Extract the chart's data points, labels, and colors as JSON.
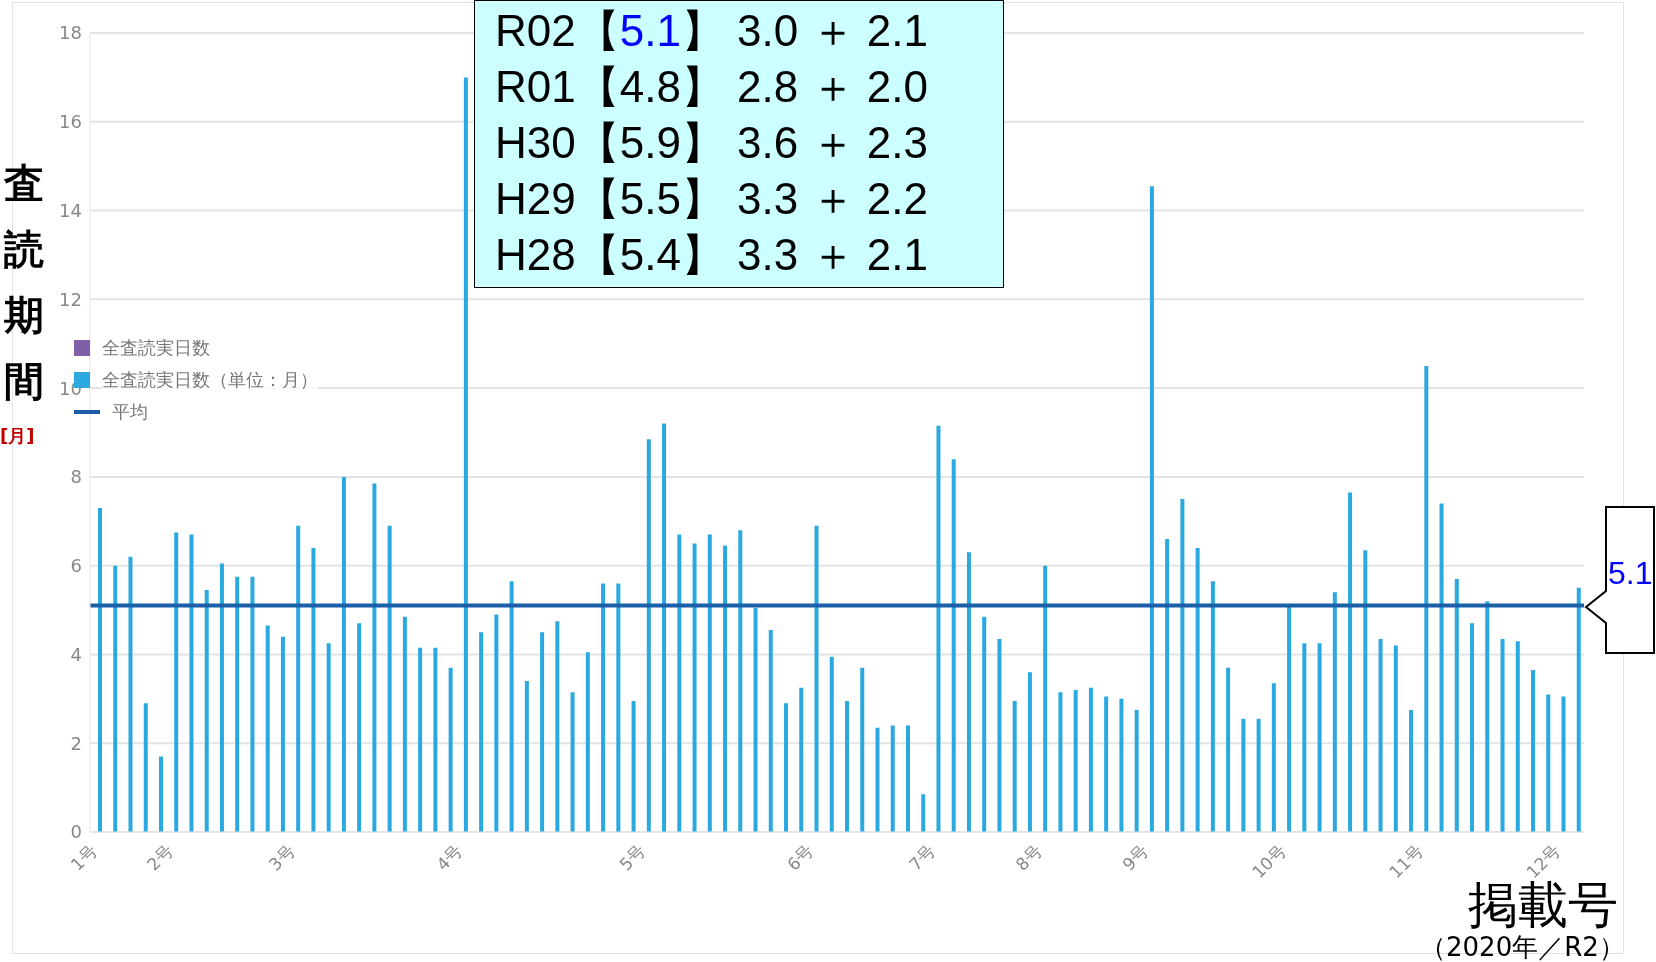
{
  "chart_data": {
    "type": "bar",
    "ylabel": "査読期間",
    "xlabel": "掲載号",
    "categories": [
      "1号",
      null,
      null,
      null,
      null,
      "2号",
      null,
      null,
      null,
      null,
      null,
      null,
      null,
      "3号",
      null,
      null,
      null,
      null,
      null,
      null,
      null,
      null,
      null,
      null,
      "4号",
      null,
      null,
      null,
      null,
      null,
      null,
      null,
      null,
      null,
      null,
      null,
      "5号",
      null,
      null,
      null,
      null,
      null,
      null,
      null,
      null,
      null,
      null,
      "6号",
      null,
      null,
      null,
      null,
      null,
      null,
      null,
      "7号",
      null,
      null,
      null,
      null,
      null,
      null,
      "8号",
      null,
      null,
      null,
      null,
      null,
      null,
      "9号",
      null,
      null,
      null,
      null,
      null,
      null,
      null,
      null,
      "10号",
      null,
      null,
      null,
      null,
      null,
      null,
      null,
      null,
      "11号",
      null,
      null,
      null,
      null,
      null,
      null,
      null,
      null,
      "12号",
      null
    ],
    "series": [
      {
        "name": "全査読実日数",
        "color": "#7f5fa8",
        "values": [
          null,
          null,
          null,
          null,
          null,
          null,
          null,
          null,
          null,
          null,
          null,
          null,
          null,
          null,
          null,
          null,
          null,
          null,
          null,
          null,
          null,
          null,
          null,
          null,
          null,
          null,
          null,
          null,
          null,
          null,
          null,
          null,
          null,
          null,
          null,
          null,
          null,
          null,
          null,
          null,
          null,
          null,
          null,
          null,
          null,
          null,
          null,
          null,
          null,
          null,
          null,
          null,
          null,
          null,
          null,
          null,
          null,
          null,
          null,
          null,
          null,
          null,
          null,
          null,
          null,
          null,
          null,
          null,
          null,
          null,
          null,
          null,
          null,
          null,
          null,
          null,
          null,
          null,
          null,
          null,
          null,
          null,
          null,
          null,
          null,
          null,
          null,
          null,
          null,
          null,
          null,
          null,
          null,
          null,
          null,
          null,
          null,
          null
        ]
      },
      {
        "name": "全査読実日数（単位：月）",
        "color": "#29a9e0",
        "values": [
          7.3,
          6.0,
          6.2,
          2.9,
          1.7,
          6.75,
          6.7,
          5.45,
          6.05,
          5.75,
          5.75,
          4.65,
          4.4,
          6.9,
          6.4,
          4.25,
          8.0,
          4.7,
          7.85,
          6.9,
          4.85,
          4.15,
          4.15,
          3.7,
          17.0,
          4.5,
          4.9,
          5.65,
          3.4,
          4.5,
          4.75,
          3.15,
          4.05,
          5.6,
          5.6,
          2.95,
          8.85,
          9.2,
          6.7,
          6.5,
          6.7,
          6.45,
          6.8,
          5.05,
          4.55,
          2.9,
          3.25,
          6.9,
          3.95,
          2.95,
          3.7,
          2.35,
          2.4,
          2.4,
          0.85,
          9.15,
          8.4,
          6.3,
          4.85,
          4.35,
          2.95,
          3.6,
          6.0,
          3.15,
          3.2,
          3.25,
          3.05,
          3.0,
          2.75,
          14.55,
          6.6,
          7.5,
          6.4,
          5.65,
          3.7,
          2.55,
          2.55,
          3.35,
          5.1,
          4.25,
          4.25,
          5.4,
          7.65,
          6.35,
          4.35,
          4.2,
          2.75,
          10.5,
          7.4,
          5.7,
          4.7,
          5.2,
          4.35,
          4.3,
          3.65,
          3.1,
          3.05,
          5.5
        ]
      }
    ],
    "ylim": [
      0,
      18
    ],
    "yticks": [
      0,
      2,
      4,
      6,
      8,
      10,
      12,
      14,
      16,
      18
    ],
    "grid": "y",
    "legend": "left",
    "ref_lines": [
      {
        "axis": "y",
        "value": 5.1,
        "label": "平均",
        "color": "#1a5fa8"
      }
    ],
    "annotations": [
      "R02【5.1】 3.0 ＋ 2.1",
      "R01【4.8】 2.8 ＋ 2.0",
      "H30【5.9】 3.6 ＋ 2.3",
      "H29【5.5】 3.3 ＋ 2.2",
      "H28【5.4】 3.3 ＋ 2.1",
      "5.1",
      "（2020年／R2）",
      "[月]"
    ]
  }
}
